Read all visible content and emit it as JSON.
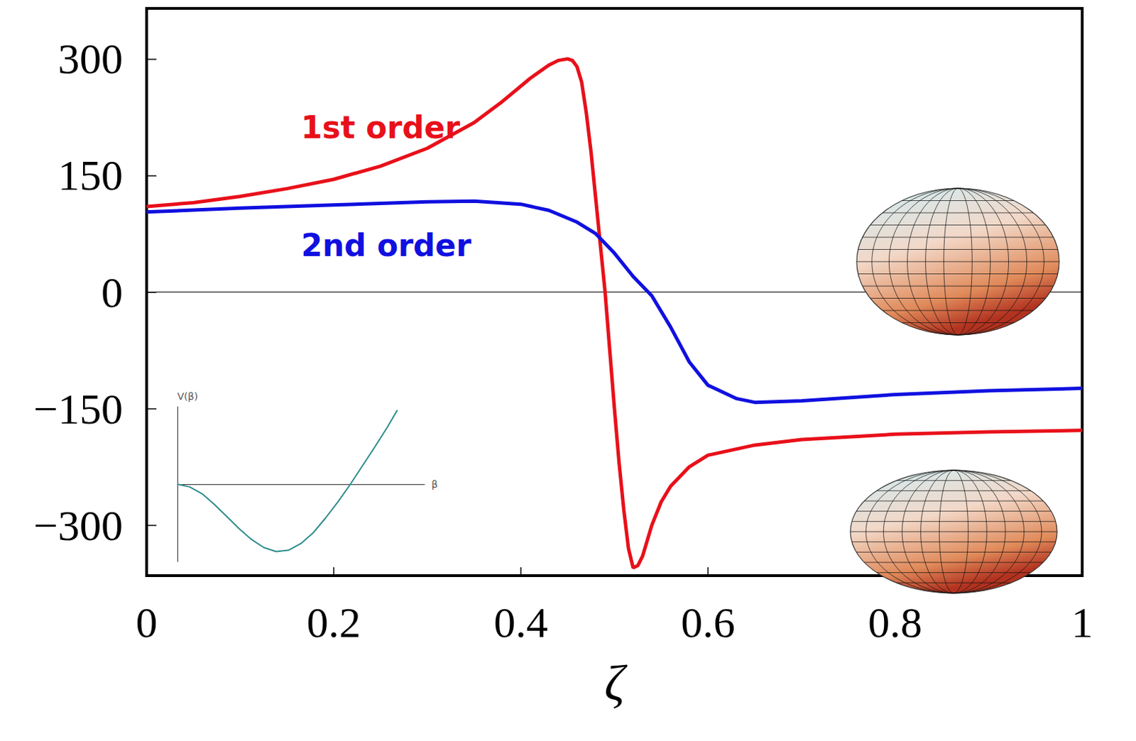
{
  "chart_data": [
    {
      "type": "line",
      "x_label": "ζ",
      "xlim": [
        0,
        1
      ],
      "xticks": [
        0,
        0.2,
        0.4,
        0.6,
        0.8,
        1
      ],
      "ylim": [
        -365,
        365
      ],
      "yticks": [
        {
          "value": -300,
          "label": "−300"
        },
        {
          "value": -150,
          "label": "−150"
        },
        0,
        150,
        300
      ],
      "grid": false,
      "series": [
        {
          "color": "#e8101a",
          "x": [
            0,
            0.05,
            0.1,
            0.15,
            0.2,
            0.25,
            0.3,
            0.35,
            0.38,
            0.41,
            0.43,
            0.44,
            0.45,
            0.455,
            0.46,
            0.465,
            0.47,
            0.475,
            0.48,
            0.485,
            0.49,
            0.495,
            0.5,
            0.505,
            0.51,
            0.515,
            0.52,
            0.525,
            0.53,
            0.54,
            0.55,
            0.56,
            0.58,
            0.6,
            0.65,
            0.7,
            0.8,
            0.9,
            1
          ],
          "values": [
            110,
            115,
            123,
            133,
            145,
            162,
            185,
            218,
            245,
            275,
            292,
            298,
            300,
            298,
            290,
            270,
            230,
            180,
            120,
            60,
            0,
            -75,
            -150,
            -220,
            -280,
            -330,
            -355,
            -352,
            -340,
            -300,
            -270,
            -250,
            -225,
            -210,
            -197,
            -190,
            -183,
            -180,
            -178
          ]
        },
        {
          "color": "#1010e0",
          "x": [
            0,
            0.1,
            0.2,
            0.3,
            0.35,
            0.4,
            0.43,
            0.46,
            0.48,
            0.5,
            0.52,
            0.54,
            0.56,
            0.58,
            0.6,
            0.63,
            0.65,
            0.7,
            0.8,
            0.9,
            1
          ],
          "values": [
            103,
            108,
            112,
            116,
            117,
            113,
            105,
            90,
            75,
            50,
            20,
            -5,
            -45,
            -90,
            -120,
            -137,
            -142,
            -140,
            -132,
            -127,
            -124
          ]
        }
      ],
      "annotations": [
        {
          "text": "1st order",
          "x": 0.25,
          "y": 212,
          "color": "#e8101a"
        },
        {
          "text": "2nd order",
          "x": 0.256,
          "y": 60,
          "color": "#1010e0"
        }
      ]
    },
    {
      "type": "line",
      "x_label": "β",
      "y_label": "V(β)",
      "xlim": [
        0,
        1
      ],
      "ylim": [
        -1.15,
        1.15
      ],
      "tick_labels": false,
      "grid": false,
      "series": [
        {
          "color": "#2e8b8b",
          "x": [
            0,
            0.05,
            0.1,
            0.15,
            0.2,
            0.25,
            0.3,
            0.35,
            0.4,
            0.45,
            0.5,
            0.55,
            0.6,
            0.65,
            0.7,
            0.75,
            0.8,
            0.85,
            0.89
          ],
          "values": [
            0,
            -0.04,
            -0.14,
            -0.3,
            -0.48,
            -0.66,
            -0.82,
            -0.94,
            -1.0,
            -0.98,
            -0.88,
            -0.72,
            -0.5,
            -0.26,
            0.0,
            0.28,
            0.56,
            0.85,
            1.1
          ]
        }
      ]
    }
  ]
}
